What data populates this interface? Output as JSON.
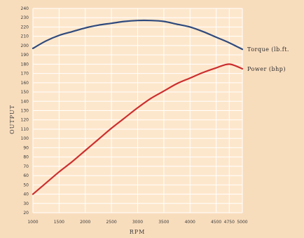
{
  "chart_data": {
    "type": "line",
    "xlabel": "RPM",
    "ylabel": "OUTPUT",
    "xlim": [
      1000,
      5000
    ],
    "ylim": [
      20,
      240
    ],
    "x_ticks": [
      1000,
      1500,
      2000,
      2500,
      3000,
      3500,
      4000,
      4500,
      4750,
      5000
    ],
    "y_ticks": [
      20,
      30,
      40,
      50,
      60,
      70,
      80,
      90,
      100,
      110,
      120,
      130,
      140,
      150,
      160,
      170,
      180,
      190,
      200,
      210,
      220,
      230,
      240
    ],
    "grid": true,
    "legend": "inline labels at right end of lines",
    "series": [
      {
        "name": "Torque (lb.ft.",
        "color": "#2f4a7d",
        "x": [
          1000,
          1250,
          1500,
          1750,
          2000,
          2250,
          2500,
          2750,
          3000,
          3250,
          3500,
          3750,
          4000,
          4250,
          4500,
          4750,
          5000
        ],
        "y": [
          197,
          205,
          211,
          215,
          219,
          222,
          224,
          226,
          227,
          227,
          226,
          223,
          220,
          215,
          209,
          203,
          196
        ]
      },
      {
        "name": "Power (bhp)",
        "color": "#cc2f2f",
        "x": [
          1000,
          1250,
          1500,
          1750,
          2000,
          2250,
          2500,
          2750,
          3000,
          3250,
          3500,
          3750,
          4000,
          4250,
          4500,
          4750,
          5000
        ],
        "y": [
          40,
          52,
          64,
          75,
          87,
          99,
          111,
          122,
          133,
          143,
          151,
          159,
          165,
          171,
          176,
          180,
          175
        ]
      }
    ]
  }
}
